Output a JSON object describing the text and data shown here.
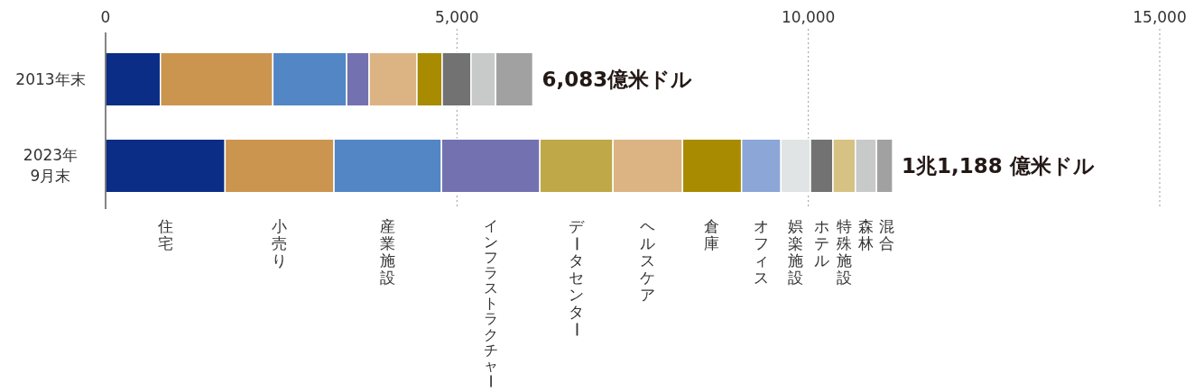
{
  "chart_data": {
    "type": "bar",
    "orientation": "horizontal",
    "stacked": true,
    "categories": [
      "2013年末",
      "2023年\n9月末"
    ],
    "xlim": [
      0,
      15000
    ],
    "xticks": [
      {
        "value": 0,
        "label": "0"
      },
      {
        "value": 5000,
        "label": "5,000"
      },
      {
        "value": 10000,
        "label": "10,000"
      },
      {
        "value": 15000,
        "label": "15,000"
      }
    ],
    "grid": "x",
    "legend": "bottom",
    "totals": [
      "6,083億米ドル",
      "1兆1,188 億米ドル"
    ],
    "series": [
      {
        "name": "住宅",
        "color": "#0b2d86",
        "values": [
          780,
          1700
        ]
      },
      {
        "name": "小売り",
        "color": "#cb954f",
        "values": [
          1600,
          1550
        ]
      },
      {
        "name": "産業施設",
        "color": "#5286c5",
        "values": [
          1050,
          1530
        ]
      },
      {
        "name": "インフラストラクチャー",
        "color": "#7471b0",
        "values": [
          320,
          1400
        ]
      },
      {
        "name": "データセンター",
        "color": "#bea848",
        "values": [
          null,
          1040
        ]
      },
      {
        "name": "ヘルスケア",
        "color": "#dcb484",
        "values": [
          680,
          990
        ]
      },
      {
        "name": "倉庫",
        "color": "#a88b00",
        "values": [
          360,
          840
        ]
      },
      {
        "name": "オフィス",
        "color": "#8ba6d7",
        "values": [
          null,
          560
        ]
      },
      {
        "name": "娯楽施設",
        "color": "#e0e4e4",
        "values": [
          null,
          420
        ]
      },
      {
        "name": "ホテル",
        "color": "#727272",
        "values": [
          410,
          320
        ]
      },
      {
        "name": "特殊施設",
        "color": "#d6c283",
        "values": [
          null,
          320
        ]
      },
      {
        "name": "森林",
        "color": "#c8c9c9",
        "values": [
          350,
          300
        ]
      },
      {
        "name": "混合",
        "color": "#a0a1a0",
        "values": [
          530,
          230
        ]
      }
    ]
  }
}
